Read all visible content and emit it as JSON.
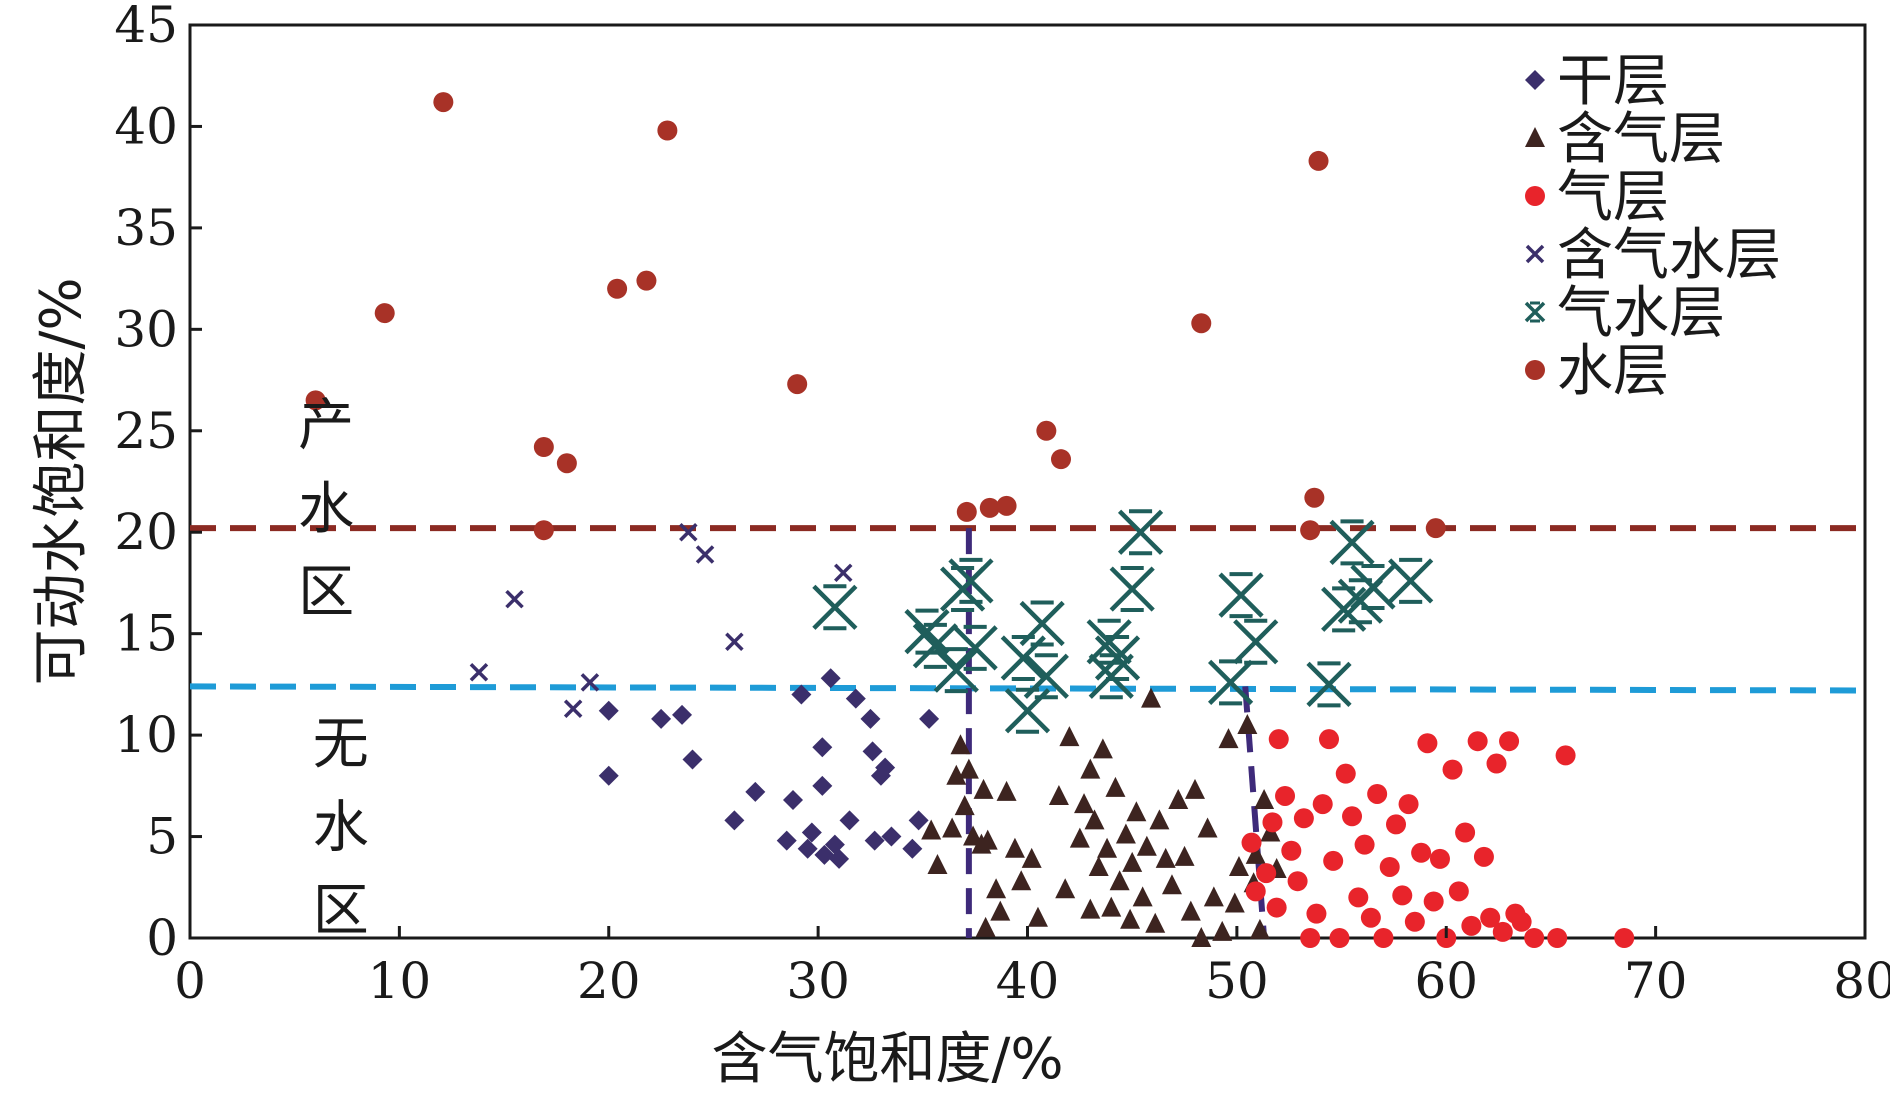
{
  "chart_data": {
    "type": "scatter",
    "xlabel": "含气饱和度/%",
    "ylabel": "可动水饱和度/%",
    "xlim": [
      0,
      80
    ],
    "ylim": [
      0,
      45
    ],
    "xticks": [
      0,
      10,
      20,
      30,
      40,
      50,
      60,
      70,
      80
    ],
    "yticks": [
      0,
      5,
      10,
      15,
      20,
      25,
      30,
      35,
      40,
      45
    ],
    "grid": false,
    "legend_position": "top-right",
    "zone_labels": [
      {
        "text": [
          "产",
          "水",
          "区"
        ],
        "x": 6.5,
        "y": [
          25.3,
          21.2,
          17.1
        ]
      },
      {
        "text": [
          "无",
          "水",
          "区"
        ],
        "x": 7.2,
        "y": [
          9.6,
          5.5,
          1.4
        ]
      }
    ],
    "reference_lines": [
      {
        "name": "water-production-cutoff",
        "color": "#8b2a22",
        "points": [
          [
            0,
            20.2
          ],
          [
            80,
            20.2
          ]
        ]
      },
      {
        "name": "no-water-cutoff",
        "color": "#1e9bd7",
        "points": [
          [
            0,
            12.4
          ],
          [
            80,
            12.2
          ]
        ]
      },
      {
        "name": "saturation-cutoff-37",
        "color": "#3e2a7a",
        "points": [
          [
            37.2,
            20.2
          ],
          [
            37.2,
            0
          ]
        ]
      },
      {
        "name": "saturation-cutoff-51",
        "color": "#3e2a7a",
        "points": [
          [
            50.4,
            12.4
          ],
          [
            51.3,
            0
          ]
        ]
      }
    ],
    "series": [
      {
        "name": "干层",
        "marker": "diamond",
        "color": "#3b2f6b",
        "points": [
          [
            20,
            11.2
          ],
          [
            20,
            8
          ],
          [
            22.5,
            10.8
          ],
          [
            23.5,
            11
          ],
          [
            24,
            8.8
          ],
          [
            26,
            5.8
          ],
          [
            27,
            7.2
          ],
          [
            28.5,
            4.8
          ],
          [
            28.8,
            6.8
          ],
          [
            29.2,
            12
          ],
          [
            29.5,
            4.4
          ],
          [
            29.7,
            5.2
          ],
          [
            30.2,
            9.4
          ],
          [
            30.2,
            7.5
          ],
          [
            30.3,
            4.1
          ],
          [
            30.6,
            12.8
          ],
          [
            30.8,
            4.6
          ],
          [
            31,
            3.9
          ],
          [
            31.5,
            5.8
          ],
          [
            31.8,
            11.8
          ],
          [
            32.5,
            10.8
          ],
          [
            32.6,
            9.2
          ],
          [
            32.7,
            4.8
          ],
          [
            33,
            8
          ],
          [
            33.2,
            8.4
          ],
          [
            33.5,
            5
          ],
          [
            34.5,
            4.4
          ],
          [
            34.8,
            5.8
          ],
          [
            35.3,
            10.8
          ]
        ]
      },
      {
        "name": "含气层",
        "marker": "triangle",
        "color": "#3d2420",
        "points": [
          [
            35.4,
            5.3
          ],
          [
            35.7,
            3.6
          ],
          [
            36.4,
            5.4
          ],
          [
            36.6,
            8
          ],
          [
            36.8,
            9.5
          ],
          [
            37,
            6.5
          ],
          [
            37.2,
            8.3
          ],
          [
            37.4,
            5
          ],
          [
            37.8,
            4.6
          ],
          [
            37.9,
            7.3
          ],
          [
            38,
            0.5
          ],
          [
            38.1,
            4.8
          ],
          [
            38.5,
            2.4
          ],
          [
            38.7,
            1.3
          ],
          [
            39,
            7.2
          ],
          [
            39.4,
            4.4
          ],
          [
            39.7,
            2.8
          ],
          [
            40.2,
            3.9
          ],
          [
            40.5,
            1
          ],
          [
            41.5,
            7
          ],
          [
            41.8,
            2.4
          ],
          [
            42,
            9.9
          ],
          [
            42.5,
            4.9
          ],
          [
            42.7,
            6.6
          ],
          [
            43,
            8.3
          ],
          [
            43,
            1.4
          ],
          [
            43.2,
            5.8
          ],
          [
            43.4,
            3.5
          ],
          [
            43.6,
            9.3
          ],
          [
            43.8,
            4.4
          ],
          [
            44,
            1.5
          ],
          [
            44.2,
            7.4
          ],
          [
            44.4,
            2.8
          ],
          [
            44.7,
            5.1
          ],
          [
            44.9,
            0.9
          ],
          [
            45,
            3.7
          ],
          [
            45.2,
            6.2
          ],
          [
            45.5,
            2
          ],
          [
            45.7,
            4.5
          ],
          [
            45.9,
            11.8
          ],
          [
            46.1,
            0.7
          ],
          [
            46.3,
            5.8
          ],
          [
            46.6,
            3.9
          ],
          [
            46.9,
            2.6
          ],
          [
            47.2,
            6.8
          ],
          [
            47.5,
            4
          ],
          [
            47.8,
            1.3
          ],
          [
            48,
            7.3
          ],
          [
            48.3,
            0
          ],
          [
            48.6,
            5.4
          ],
          [
            48.9,
            2
          ],
          [
            49.3,
            0.3
          ],
          [
            49.6,
            9.8
          ],
          [
            49.9,
            1.7
          ],
          [
            50.1,
            3.5
          ],
          [
            50.5,
            10.5
          ],
          [
            50.8,
            2.7
          ],
          [
            50.9,
            4.1
          ],
          [
            51.1,
            0.4
          ],
          [
            51.3,
            6.8
          ],
          [
            51.6,
            5.2
          ],
          [
            51.9,
            3.4
          ]
        ]
      },
      {
        "name": "气层",
        "marker": "circle",
        "color": "#e8242b",
        "points": [
          [
            50.7,
            4.7
          ],
          [
            50.9,
            2.3
          ],
          [
            51.4,
            3.2
          ],
          [
            51.7,
            5.7
          ],
          [
            51.9,
            1.5
          ],
          [
            52,
            9.8
          ],
          [
            52.3,
            7
          ],
          [
            52.6,
            4.3
          ],
          [
            52.9,
            2.8
          ],
          [
            53.2,
            5.9
          ],
          [
            53.5,
            0
          ],
          [
            53.8,
            1.2
          ],
          [
            54.1,
            6.6
          ],
          [
            54.4,
            9.8
          ],
          [
            54.6,
            3.8
          ],
          [
            54.9,
            0
          ],
          [
            55.2,
            8.1
          ],
          [
            55.5,
            6
          ],
          [
            55.8,
            2
          ],
          [
            56.1,
            4.6
          ],
          [
            56.4,
            1
          ],
          [
            56.7,
            7.1
          ],
          [
            57,
            0
          ],
          [
            57.3,
            3.5
          ],
          [
            57.6,
            5.6
          ],
          [
            57.9,
            2.1
          ],
          [
            58.2,
            6.6
          ],
          [
            58.5,
            0.8
          ],
          [
            58.8,
            4.2
          ],
          [
            59.1,
            9.6
          ],
          [
            59.4,
            1.8
          ],
          [
            59.7,
            3.9
          ],
          [
            60,
            0
          ],
          [
            60.3,
            8.3
          ],
          [
            60.6,
            2.3
          ],
          [
            60.9,
            5.2
          ],
          [
            61.2,
            0.6
          ],
          [
            61.5,
            9.7
          ],
          [
            61.8,
            4
          ],
          [
            62.1,
            1
          ],
          [
            62.4,
            8.6
          ],
          [
            62.7,
            0.3
          ],
          [
            63,
            9.7
          ],
          [
            63.3,
            1.2
          ],
          [
            63.6,
            0.8
          ],
          [
            64.2,
            0
          ],
          [
            65.3,
            0
          ],
          [
            65.7,
            9
          ],
          [
            68.5,
            0
          ]
        ]
      },
      {
        "name": "含气水层",
        "marker": "x",
        "color": "#3b2f6b",
        "points": [
          [
            13.8,
            13.1
          ],
          [
            15.5,
            16.7
          ],
          [
            18.3,
            11.3
          ],
          [
            19.1,
            12.6
          ],
          [
            23.8,
            20
          ],
          [
            24.6,
            18.9
          ],
          [
            26,
            14.6
          ],
          [
            31.2,
            18
          ]
        ]
      },
      {
        "name": "气水层",
        "marker": "star",
        "color": "#1f5e5b",
        "points": [
          [
            30.8,
            16.3
          ],
          [
            35.2,
            15.1
          ],
          [
            35.6,
            14.4
          ],
          [
            36.6,
            13.2
          ],
          [
            36.9,
            17.2
          ],
          [
            37.3,
            17.6
          ],
          [
            37.5,
            14.3
          ],
          [
            39.8,
            13.8
          ],
          [
            40,
            11.2
          ],
          [
            40.7,
            15.5
          ],
          [
            40.9,
            12.9
          ],
          [
            43.9,
            14.6
          ],
          [
            44,
            12.9
          ],
          [
            44.3,
            13.8
          ],
          [
            45,
            17.2
          ],
          [
            45.4,
            20
          ],
          [
            49.7,
            12.6
          ],
          [
            50.2,
            16.9
          ],
          [
            50.9,
            14.6
          ],
          [
            54.4,
            12.5
          ],
          [
            55.1,
            16.2
          ],
          [
            55.5,
            19.5
          ],
          [
            55.9,
            16.6
          ],
          [
            56.5,
            17.3
          ],
          [
            58.3,
            17.6
          ]
        ]
      },
      {
        "name": "水层",
        "marker": "circle",
        "color": "#a83227",
        "points": [
          [
            6,
            26.5
          ],
          [
            9.3,
            30.8
          ],
          [
            12.1,
            41.2
          ],
          [
            16.9,
            24.2
          ],
          [
            16.9,
            20.1
          ],
          [
            18,
            23.4
          ],
          [
            20.4,
            32
          ],
          [
            21.8,
            32.4
          ],
          [
            22.8,
            39.8
          ],
          [
            29,
            27.3
          ],
          [
            37.1,
            21
          ],
          [
            38.2,
            21.2
          ],
          [
            39,
            21.3
          ],
          [
            40.9,
            25
          ],
          [
            41.6,
            23.6
          ],
          [
            48.3,
            30.3
          ],
          [
            53.5,
            20.1
          ],
          [
            53.7,
            21.7
          ],
          [
            53.9,
            38.3
          ],
          [
            59.5,
            20.2
          ]
        ]
      }
    ]
  }
}
